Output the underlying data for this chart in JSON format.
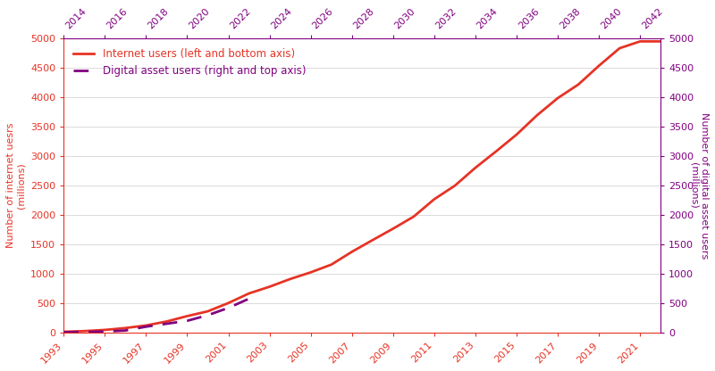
{
  "internet_years": [
    1993,
    1994,
    1995,
    1996,
    1997,
    1998,
    1999,
    2000,
    2001,
    2002,
    2003,
    2004,
    2005,
    2006,
    2007,
    2008,
    2009,
    2010,
    2011,
    2012,
    2013,
    2014,
    2015,
    2016,
    2017,
    2018,
    2019,
    2020,
    2021,
    2022
  ],
  "internet_users": [
    14,
    25,
    45,
    77,
    121,
    188,
    280,
    361,
    502,
    665,
    779,
    910,
    1024,
    1155,
    1373,
    1571,
    1766,
    1971,
    2267,
    2497,
    2802,
    3079,
    3366,
    3696,
    3986,
    4217,
    4536,
    4833,
    4950,
    4950
  ],
  "crypto_years": [
    2014,
    2015,
    2016,
    2017,
    2018,
    2019,
    2020,
    2021,
    2022,
    2023
  ],
  "crypto_users": [
    5,
    10,
    18,
    35,
    100,
    150,
    200,
    295,
    420,
    575
  ],
  "crypto_axis_years": [
    2014,
    2016,
    2018,
    2020,
    2022,
    2024,
    2026,
    2028,
    2030,
    2032,
    2034,
    2036,
    2038,
    2040,
    2042
  ],
  "internet_axis_years": [
    1993,
    1995,
    1997,
    1999,
    2001,
    2003,
    2005,
    2007,
    2009,
    2011,
    2013,
    2015,
    2017,
    2019,
    2021
  ],
  "internet_color": "#e63325",
  "crypto_color": "#800080",
  "axis_color": "#e63325",
  "right_axis_color": "#800080",
  "left_ylabel": "Number of internet uesrs\n(millions)",
  "right_ylabel": "Number of digital asset users\n(millions)",
  "legend_internet": "Internet users (left and bottom axis)",
  "legend_crypto": "Digital asset users (right and top axis)",
  "ylim_left": [
    0,
    5000
  ],
  "ylim_right": [
    0,
    5000
  ],
  "yticks": [
    0,
    500,
    1000,
    1500,
    2000,
    2500,
    3000,
    3500,
    4000,
    4500,
    5000
  ],
  "background_color": "#ffffff",
  "grid_color": "#cccccc"
}
